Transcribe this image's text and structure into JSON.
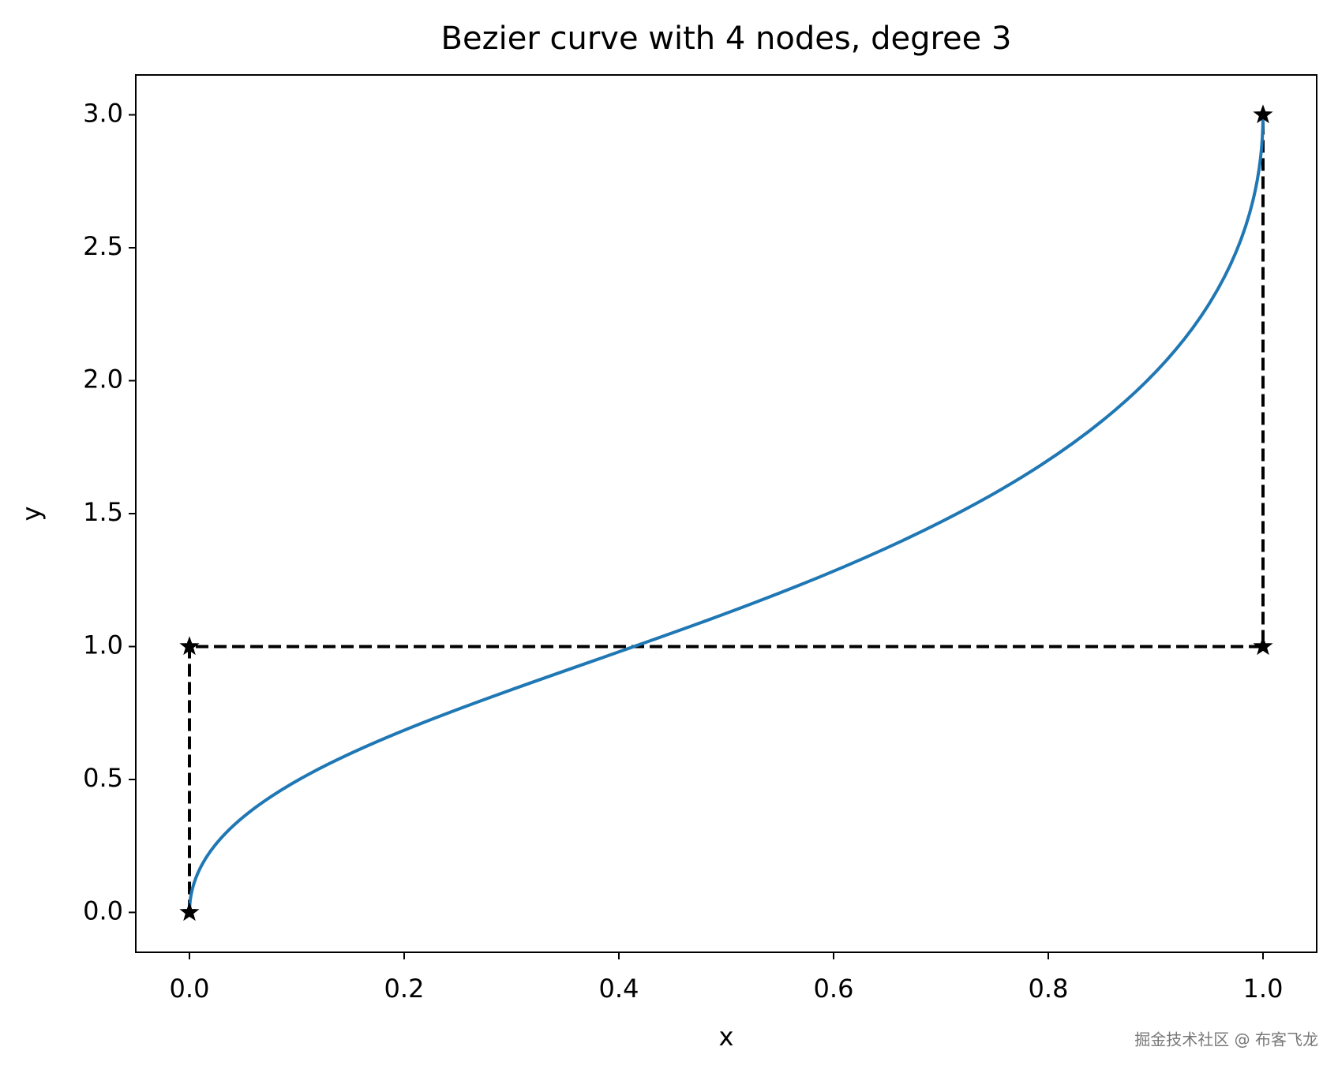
{
  "chart_data": {
    "type": "bezier",
    "title": "Bezier curve with 4 nodes, degree 3",
    "x_label": "x",
    "y_label": "y",
    "nodes": {
      "x": [
        0,
        0,
        1,
        1
      ],
      "y": [
        0,
        1,
        1,
        3
      ],
      "color": "#000000",
      "marker": "star",
      "linestyle": "dashed"
    },
    "curve_color": "#1f77b4",
    "xlim": [
      -0.05,
      1.05
    ],
    "ylim": [
      -0.15,
      3.15
    ],
    "xticks": [
      {
        "value": 0,
        "label": "0.0"
      },
      {
        "value": 0.2,
        "label": "0.2"
      },
      {
        "value": 0.4,
        "label": "0.4"
      },
      {
        "value": 0.6,
        "label": "0.6"
      },
      {
        "value": 0.8,
        "label": "0.8"
      },
      {
        "value": 1,
        "label": "1.0"
      }
    ],
    "yticks": [
      {
        "value": 0,
        "label": "0.0"
      },
      {
        "value": 0.5,
        "label": "0.5"
      },
      {
        "value": 1,
        "label": "1.0"
      },
      {
        "value": 1.5,
        "label": "1.5"
      },
      {
        "value": 2,
        "label": "2.0"
      },
      {
        "value": 2.5,
        "label": "2.5"
      },
      {
        "value": 3,
        "label": "3.0"
      }
    ],
    "watermark": "掘金技术社区 @ 布客飞龙"
  }
}
